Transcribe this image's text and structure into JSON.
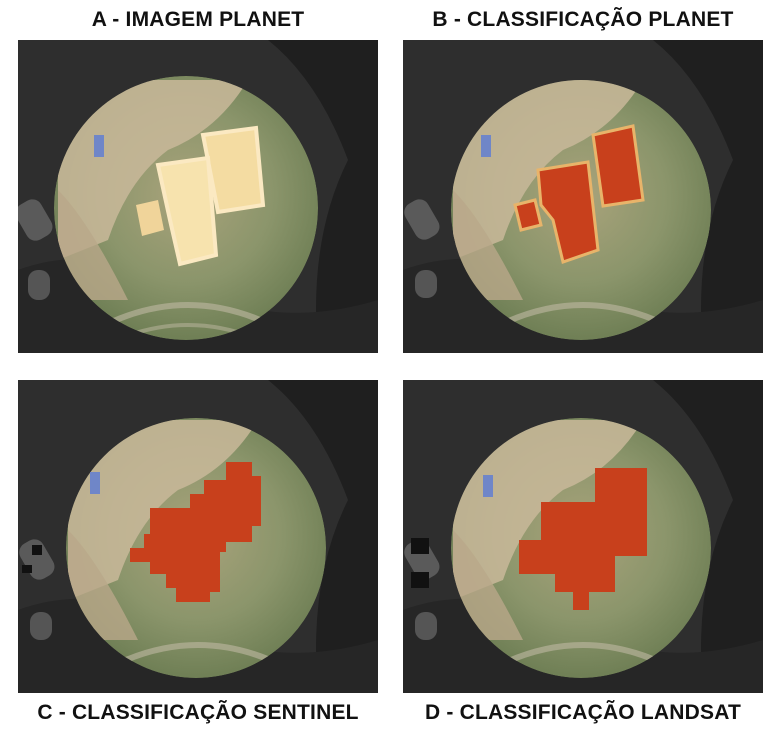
{
  "panels": [
    {
      "label": "A - IMAGEM PLANET"
    },
    {
      "label": "B - CLASSIFICAÇÃO PLANET"
    },
    {
      "label": "C - CLASSIFICAÇÃO SENTINEL"
    },
    {
      "label": "D - CLASSIFICAÇÃO LANDSAT"
    }
  ],
  "colors": {
    "background_dark": "#2c2c2c",
    "circle_vegetation": "#7f8f63",
    "circle_urban": "#c7b79b",
    "classification_fill": "#c8401c",
    "bright_surface": "#f4dca2",
    "pool": "#6f86c8"
  }
}
